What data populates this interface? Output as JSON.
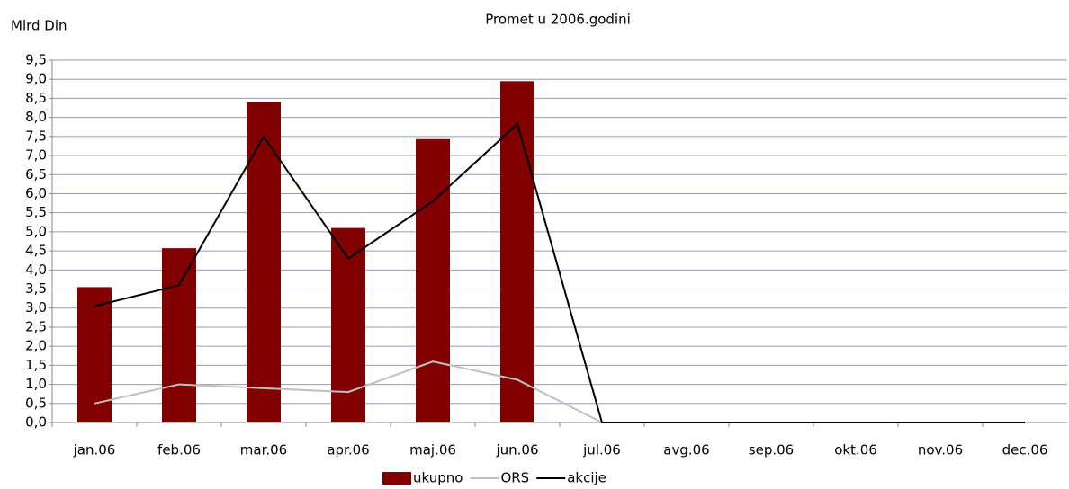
{
  "chart_data": {
    "type": "bar_line",
    "title": "Promet u 2006.godini",
    "y_label": "Mlrd Din",
    "categories": [
      "jan.06",
      "feb.06",
      "mar.06",
      "apr.06",
      "maj.06",
      "jun.06",
      "jul.06",
      "avg.06",
      "sep.06",
      "okt.06",
      "nov.06",
      "dec.06"
    ],
    "series": [
      {
        "name": "ukupno",
        "type": "bar",
        "color": "#800000",
        "values": [
          3.55,
          4.57,
          8.4,
          5.1,
          7.43,
          8.95,
          0,
          0,
          0,
          0,
          0,
          0
        ]
      },
      {
        "name": "ORS",
        "type": "line",
        "color": "#c0c0c0",
        "values": [
          0.5,
          1.0,
          0.9,
          0.8,
          1.6,
          1.12,
          0,
          0,
          0,
          0,
          0,
          0
        ]
      },
      {
        "name": "akcije",
        "type": "line",
        "color": "#000000",
        "values": [
          3.05,
          3.6,
          7.5,
          4.3,
          5.8,
          7.83,
          0,
          0,
          0,
          0,
          0,
          0
        ]
      }
    ],
    "ylim": [
      0,
      9.5
    ],
    "yticks": [
      {
        "value": 0,
        "label": "0,0"
      },
      {
        "value": 0.5,
        "label": "0,5"
      },
      {
        "value": 1,
        "label": "1,0"
      },
      {
        "value": 1.5,
        "label": "1,5"
      },
      {
        "value": 2,
        "label": "2,0"
      },
      {
        "value": 2.5,
        "label": "2,5"
      },
      {
        "value": 3,
        "label": "3,0"
      },
      {
        "value": 3.5,
        "label": "3,5"
      },
      {
        "value": 4,
        "label": "4,0"
      },
      {
        "value": 4.5,
        "label": "4,5"
      },
      {
        "value": 5,
        "label": "5,0"
      },
      {
        "value": 5.5,
        "label": "5,5"
      },
      {
        "value": 6,
        "label": "6,0"
      },
      {
        "value": 6.5,
        "label": "6,5"
      },
      {
        "value": 7,
        "label": "7,0"
      },
      {
        "value": 7.5,
        "label": "7,5"
      },
      {
        "value": 8,
        "label": "8,0"
      },
      {
        "value": 8.5,
        "label": "8,5"
      },
      {
        "value": 9,
        "label": "9,0"
      },
      {
        "value": 9.5,
        "label": "9,5"
      }
    ],
    "grid": true,
    "legend": "bottom"
  }
}
